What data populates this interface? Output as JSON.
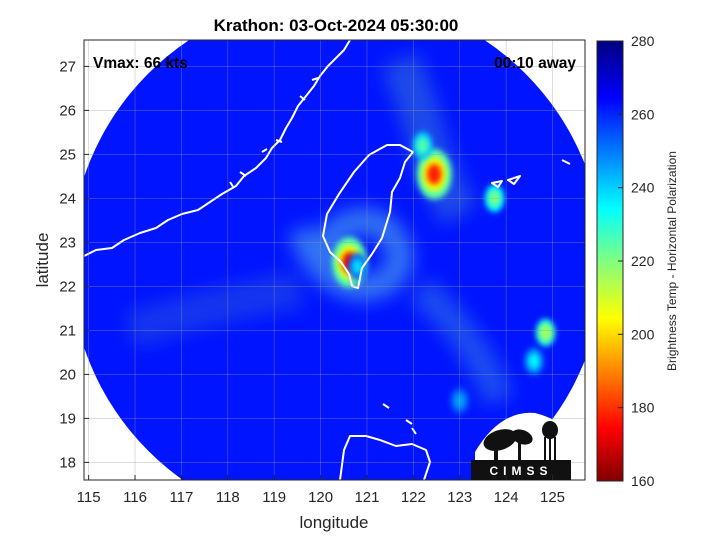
{
  "title": "Krathon: 03-Oct-2024 05:30:00",
  "annotations": {
    "vmax": "Vmax: 66 kts",
    "time_away": "00:10 away"
  },
  "axes": {
    "xlabel": "longitude",
    "ylabel": "latitude",
    "xlim": [
      114.9,
      125.7
    ],
    "ylim": [
      17.6,
      27.6
    ],
    "xticks": [
      115,
      116,
      117,
      118,
      119,
      120,
      121,
      122,
      123,
      124,
      125
    ],
    "yticks": [
      18,
      19,
      20,
      21,
      22,
      23,
      24,
      25,
      26,
      27
    ],
    "grid": true
  },
  "colorbar": {
    "label": "Brightness Temp - Horizontal Polarization",
    "range": [
      160,
      280
    ],
    "ticks": [
      160,
      180,
      200,
      220,
      240,
      260,
      280
    ],
    "colormap": "jet"
  },
  "logo": {
    "text": "CIMSS"
  },
  "colors": {
    "background_outside_swath": "#ffffff",
    "swath_base": "#1a3fd0",
    "coastline": "#ffffff"
  },
  "chart_data": {
    "type": "heatmap",
    "title": "Krathon: 03-Oct-2024 05:30:00",
    "xlabel": "longitude",
    "ylabel": "latitude",
    "xlim": [
      114.9,
      125.7
    ],
    "ylim": [
      17.6,
      27.6
    ],
    "swath": {
      "center_lon": 120.35,
      "center_lat": 22.55,
      "radius_deg": 5.75,
      "typical_tb": 262
    },
    "features": [
      {
        "name": "eyewall-sw-taiwan",
        "lon": 120.62,
        "lat": 22.55,
        "tb": 172
      },
      {
        "name": "band-ne-taiwan",
        "lon": 122.45,
        "lat": 24.55,
        "tb": 178
      },
      {
        "name": "band-ne-north",
        "lon": 122.2,
        "lat": 25.2,
        "tb": 225
      },
      {
        "name": "cell-east-1",
        "lon": 123.75,
        "lat": 24.0,
        "tb": 220
      },
      {
        "name": "cell-east-2",
        "lon": 124.85,
        "lat": 20.95,
        "tb": 215
      },
      {
        "name": "cell-east-3",
        "lon": 124.6,
        "lat": 20.3,
        "tb": 235
      },
      {
        "name": "cell-se",
        "lon": 123.0,
        "lat": 19.4,
        "tb": 245
      },
      {
        "name": "rain-band-core",
        "lon": 120.8,
        "lat": 22.45,
        "tb": 238
      }
    ],
    "colorbar": {
      "label": "Brightness Temp - Horizontal Polarization",
      "range": [
        160,
        280
      ]
    }
  }
}
